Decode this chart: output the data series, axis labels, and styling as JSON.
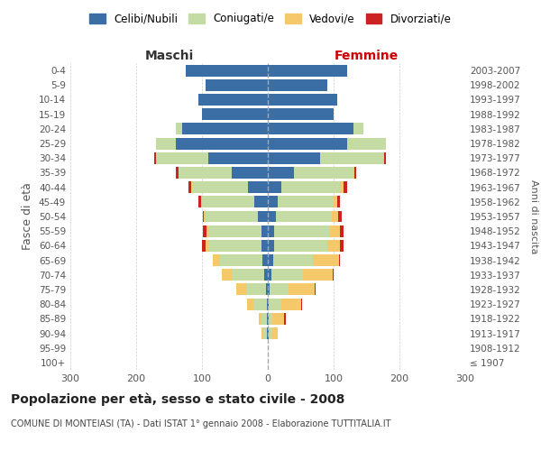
{
  "age_groups": [
    "100+",
    "95-99",
    "90-94",
    "85-89",
    "80-84",
    "75-79",
    "70-74",
    "65-69",
    "60-64",
    "55-59",
    "50-54",
    "45-49",
    "40-44",
    "35-39",
    "30-34",
    "25-29",
    "20-24",
    "15-19",
    "10-14",
    "5-9",
    "0-4"
  ],
  "birth_years": [
    "≤ 1907",
    "1908-1912",
    "1913-1917",
    "1918-1922",
    "1923-1927",
    "1928-1932",
    "1933-1937",
    "1938-1942",
    "1943-1947",
    "1948-1952",
    "1953-1957",
    "1958-1962",
    "1963-1967",
    "1968-1972",
    "1973-1977",
    "1978-1982",
    "1983-1987",
    "1988-1992",
    "1993-1997",
    "1998-2002",
    "2003-2007"
  ],
  "males": {
    "celibi": [
      0,
      0,
      2,
      1,
      2,
      3,
      5,
      8,
      10,
      10,
      15,
      20,
      30,
      55,
      90,
      140,
      130,
      100,
      105,
      95,
      125
    ],
    "coniugati": [
      0,
      0,
      5,
      8,
      20,
      30,
      50,
      65,
      80,
      80,
      80,
      80,
      85,
      80,
      80,
      30,
      10,
      0,
      0,
      0,
      0
    ],
    "vedovi": [
      0,
      0,
      2,
      5,
      10,
      15,
      15,
      10,
      5,
      3,
      2,
      1,
      1,
      0,
      0,
      0,
      0,
      0,
      0,
      0,
      0
    ],
    "divorziati": [
      0,
      0,
      0,
      0,
      0,
      0,
      0,
      0,
      5,
      5,
      2,
      5,
      5,
      5,
      2,
      0,
      0,
      0,
      0,
      0,
      0
    ]
  },
  "females": {
    "nubili": [
      0,
      0,
      2,
      2,
      2,
      3,
      5,
      8,
      10,
      10,
      12,
      15,
      20,
      40,
      80,
      120,
      130,
      100,
      105,
      90,
      120
    ],
    "coniugate": [
      0,
      0,
      5,
      5,
      18,
      28,
      48,
      60,
      80,
      85,
      85,
      85,
      90,
      90,
      95,
      60,
      15,
      0,
      0,
      0,
      0
    ],
    "vedove": [
      0,
      0,
      8,
      18,
      30,
      40,
      45,
      40,
      20,
      15,
      10,
      5,
      5,
      2,
      2,
      0,
      0,
      0,
      0,
      0,
      0
    ],
    "divorziate": [
      0,
      0,
      0,
      2,
      2,
      2,
      2,
      2,
      5,
      5,
      5,
      5,
      5,
      2,
      2,
      0,
      0,
      0,
      0,
      0,
      0
    ]
  },
  "colors": {
    "celibi": "#3a6ea5",
    "coniugati": "#c5dba4",
    "vedovi": "#f5c96a",
    "divorziati": "#cc2222"
  },
  "xlim": 300,
  "title": "Popolazione per età, sesso e stato civile - 2008",
  "subtitle": "COMUNE DI MONTEIASI (TA) - Dati ISTAT 1° gennaio 2008 - Elaborazione TUTTITALIA.IT",
  "ylabel_left": "Fasce di età",
  "ylabel_right": "Anni di nascita",
  "xlabel_left": "Maschi",
  "xlabel_right": "Femmine",
  "legend_labels": [
    "Celibi/Nubili",
    "Coniugati/e",
    "Vedovi/e",
    "Divorziati/e"
  ],
  "background_color": "#ffffff",
  "grid_color": "#cccccc"
}
